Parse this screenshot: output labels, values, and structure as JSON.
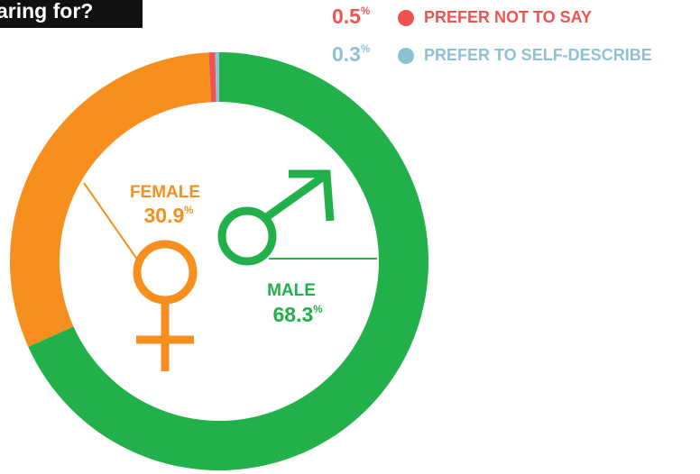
{
  "chart_data": {
    "type": "pie",
    "title": "aring for?",
    "unit": "%",
    "categories": [
      "MALE",
      "FEMALE",
      "PREFER NOT TO SAY",
      "PREFER TO SELF-DESCRIBE"
    ],
    "values": [
      68.3,
      30.9,
      0.5,
      0.3
    ],
    "colors": [
      "#22b04b",
      "#f78f1e",
      "#ef5350",
      "#8fc1d4"
    ]
  }
}
